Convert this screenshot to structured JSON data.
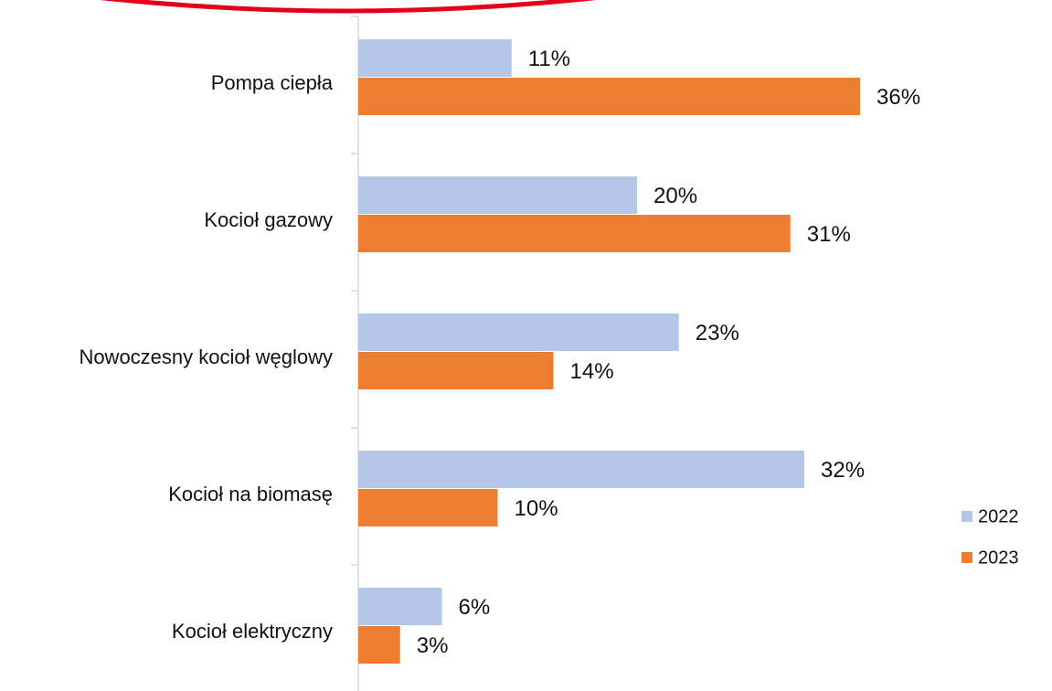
{
  "chart_data": {
    "type": "bar",
    "orientation": "horizontal",
    "categories": [
      "Pompa ciepła",
      "Kocioł gazowy",
      "Nowoczesny kocioł węglowy",
      "Kocioł na biomasę",
      "Kocioł elektryczny"
    ],
    "series": [
      {
        "name": "2022",
        "values": [
          11,
          20,
          23,
          32,
          6
        ],
        "labels": [
          "11%",
          "20%",
          "23%",
          "32%",
          "6%"
        ],
        "color": "#B4C7E7"
      },
      {
        "name": "2023",
        "values": [
          36,
          31,
          14,
          10,
          3
        ],
        "labels": [
          "36%",
          "31%",
          "14%",
          "10%",
          "3%"
        ],
        "color": "#ED7D31"
      }
    ],
    "value_unit": "%",
    "xlim": [
      0,
      40
    ],
    "grid": false,
    "legend_position": "right",
    "title": "",
    "xlabel": "",
    "ylabel": ""
  },
  "colors": {
    "axis": "#D9D9D9",
    "decoration_arc": "#E3001B"
  }
}
